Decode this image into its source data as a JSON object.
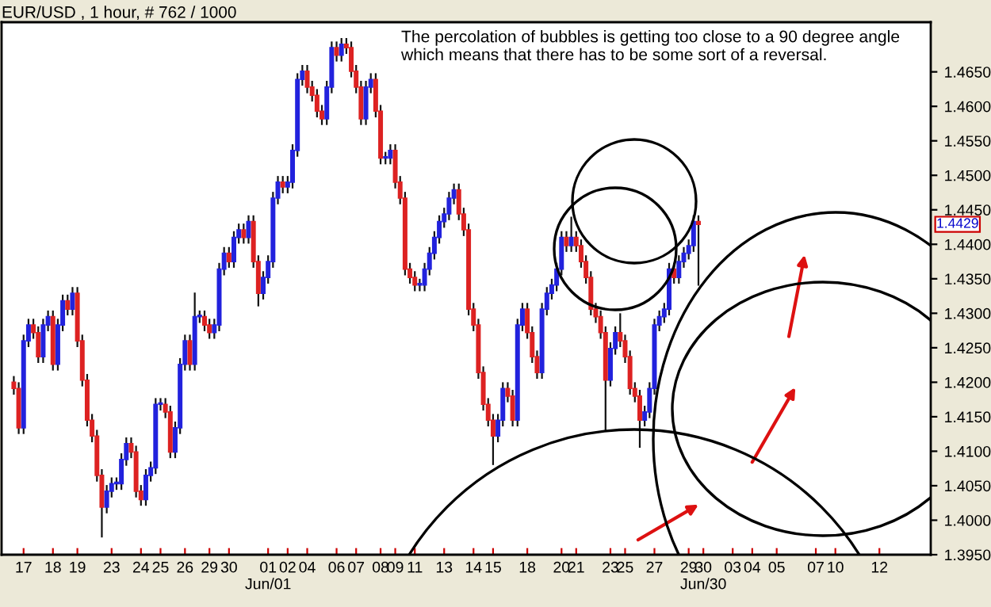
{
  "chart_data": {
    "type": "candlestick",
    "title": "EUR/USD , 1 hour, # 762 / 1000",
    "annotations": [
      "The percolation of bubbles is getting too close to a 90 degree angle which means that there has to be some sort of a reversal.",
      {
        "text": "1.4429",
        "y": 1.4429
      }
    ],
    "categories": [
      null,
      null,
      null,
      null,
      "17",
      null,
      null,
      null,
      null,
      null,
      "18",
      null,
      null,
      null,
      null,
      "19",
      null,
      null,
      null,
      null,
      null,
      null,
      "23",
      null,
      null,
      null,
      null,
      null,
      "24",
      null,
      null,
      null,
      "25",
      null,
      null,
      null,
      null,
      "26",
      null,
      null,
      null,
      null,
      "29",
      null,
      null,
      null,
      "30",
      null,
      null,
      null,
      null,
      null,
      null,
      null,
      "01\nJun/01",
      null,
      null,
      null,
      "02",
      null,
      null,
      null,
      "04",
      null,
      null,
      null,
      null,
      null,
      "06",
      null,
      null,
      null,
      "07",
      null,
      null,
      null,
      null,
      "08",
      null,
      null,
      "09",
      null,
      null,
      null,
      "11",
      null,
      null,
      null,
      null,
      null,
      "13",
      null,
      null,
      null,
      null,
      null,
      "14",
      null,
      null,
      null,
      "15",
      null,
      null,
      null,
      null,
      null,
      null,
      "18",
      null,
      null,
      null,
      null,
      null,
      null,
      "20",
      null,
      null,
      "21",
      null,
      null,
      null,
      null,
      null,
      null,
      "23",
      null,
      null,
      "25",
      null,
      null,
      null,
      null,
      null,
      "27",
      null,
      null,
      null,
      null,
      null,
      null,
      "29",
      null,
      null,
      "30\nJun/30",
      null,
      null,
      null,
      null,
      null,
      "03",
      null,
      null,
      null,
      "04",
      null,
      null,
      null,
      null,
      "05",
      null,
      null,
      null,
      null,
      null,
      null,
      null,
      "07",
      null,
      null,
      null,
      "10",
      null,
      null,
      null,
      null,
      null,
      null,
      null,
      null,
      "12",
      null,
      null,
      null,
      null,
      null,
      null,
      null,
      null,
      null,
      null
    ],
    "ohlc": [
      null,
      null,
      [
        1.42,
        1.4209,
        1.4182,
        1.4191
      ],
      [
        1.4191,
        1.42,
        1.4125,
        1.4134
      ],
      [
        1.4134,
        1.4269,
        1.4125,
        1.426
      ],
      [
        1.426,
        1.4292,
        1.4251,
        1.4283
      ],
      [
        1.4283,
        1.4292,
        1.4263,
        1.4272
      ],
      [
        1.4272,
        1.4281,
        1.4228,
        1.4237
      ],
      [
        1.4237,
        1.4292,
        1.4228,
        1.4283
      ],
      [
        1.4283,
        1.4304,
        1.4274,
        1.4295
      ],
      [
        1.4295,
        1.4304,
        1.4217,
        1.4226
      ],
      [
        1.4226,
        1.4292,
        1.4217,
        1.4283
      ],
      [
        1.4283,
        1.4327,
        1.4274,
        1.4318
      ],
      [
        1.4318,
        1.4327,
        1.4297,
        1.4306
      ],
      [
        1.4306,
        1.4338,
        1.4297,
        1.4329
      ],
      [
        1.4329,
        1.4338,
        1.4251,
        1.426
      ],
      [
        1.426,
        1.4269,
        1.4194,
        1.4203
      ],
      [
        1.4203,
        1.4212,
        1.4136,
        1.4145
      ],
      [
        1.4145,
        1.4154,
        1.4113,
        1.4122
      ],
      [
        1.4122,
        1.4131,
        1.4056,
        1.4065
      ],
      [
        1.4065,
        1.4074,
        1.3975,
        1.4019
      ],
      [
        1.4019,
        1.4051,
        1.401,
        1.4042
      ],
      [
        1.4042,
        1.4062,
        1.4033,
        1.4053
      ],
      [
        1.4053,
        1.4062,
        1.4044,
        1.4053
      ],
      [
        1.4053,
        1.4097,
        1.4044,
        1.4088
      ],
      [
        1.4088,
        1.412,
        1.4079,
        1.4111
      ],
      [
        1.4111,
        1.412,
        1.409,
        1.4099
      ],
      [
        1.4099,
        1.4108,
        1.4033,
        1.4042
      ],
      [
        1.4042,
        1.4051,
        1.4021,
        1.403
      ],
      [
        1.403,
        1.4074,
        1.4021,
        1.4065
      ],
      [
        1.4065,
        1.4085,
        1.4056,
        1.4076
      ],
      [
        1.4076,
        1.4177,
        1.4067,
        1.4168
      ],
      [
        1.4168,
        1.4177,
        1.4159,
        1.4168
      ],
      [
        1.4168,
        1.4177,
        1.4148,
        1.4157
      ],
      [
        1.4157,
        1.4166,
        1.409,
        1.4099
      ],
      [
        1.4099,
        1.4143,
        1.409,
        1.4134
      ],
      [
        1.4134,
        1.4235,
        1.4125,
        1.4226
      ],
      [
        1.4226,
        1.4269,
        1.4217,
        1.426
      ],
      [
        1.426,
        1.4269,
        1.4217,
        1.4226
      ],
      [
        1.4226,
        1.433,
        1.4217,
        1.4295
      ],
      [
        1.4295,
        1.4304,
        1.4286,
        1.4295
      ],
      [
        1.4295,
        1.4304,
        1.4274,
        1.4283
      ],
      [
        1.4283,
        1.4292,
        1.4263,
        1.4272
      ],
      [
        1.4272,
        1.4292,
        1.4263,
        1.4283
      ],
      [
        1.4283,
        1.4373,
        1.4274,
        1.4364
      ],
      [
        1.4364,
        1.4396,
        1.4355,
        1.4387
      ],
      [
        1.4387,
        1.4396,
        1.4366,
        1.4375
      ],
      [
        1.4375,
        1.4419,
        1.4366,
        1.441
      ],
      [
        1.441,
        1.443,
        1.4401,
        1.4421
      ],
      [
        1.4421,
        1.443,
        1.4401,
        1.441
      ],
      [
        1.441,
        1.4442,
        1.4401,
        1.4433
      ],
      [
        1.4433,
        1.4442,
        1.4366,
        1.4375
      ],
      [
        1.4375,
        1.4384,
        1.431,
        1.4329
      ],
      [
        1.4329,
        1.4361,
        1.432,
        1.4352
      ],
      [
        1.4352,
        1.4384,
        1.4343,
        1.4375
      ],
      [
        1.4375,
        1.4476,
        1.4366,
        1.4467
      ],
      [
        1.4467,
        1.4499,
        1.4458,
        1.449
      ],
      [
        1.449,
        1.4499,
        1.4474,
        1.4483
      ],
      [
        1.4483,
        1.4499,
        1.4474,
        1.449
      ],
      [
        1.449,
        1.4545,
        1.4481,
        1.4536
      ],
      [
        1.4536,
        1.4648,
        1.4527,
        1.4639
      ],
      [
        1.4639,
        1.466,
        1.463,
        1.4651
      ],
      [
        1.4651,
        1.466,
        1.4619,
        1.4628
      ],
      [
        1.4628,
        1.4637,
        1.4607,
        1.4616
      ],
      [
        1.4616,
        1.4625,
        1.4584,
        1.4593
      ],
      [
        1.4593,
        1.4602,
        1.4573,
        1.4582
      ],
      [
        1.4582,
        1.4637,
        1.4573,
        1.4628
      ],
      [
        1.4628,
        1.4694,
        1.4619,
        1.4685
      ],
      [
        1.4685,
        1.4694,
        1.4665,
        1.4674
      ],
      [
        1.4674,
        1.4699,
        1.4665,
        1.469
      ],
      [
        1.469,
        1.4699,
        1.4676,
        1.4685
      ],
      [
        1.4685,
        1.4694,
        1.4642,
        1.4651
      ],
      [
        1.4651,
        1.466,
        1.4619,
        1.4628
      ],
      [
        1.4628,
        1.4637,
        1.4573,
        1.4582
      ],
      [
        1.4582,
        1.4637,
        1.4573,
        1.4628
      ],
      [
        1.4628,
        1.4648,
        1.4619,
        1.4639
      ],
      [
        1.4639,
        1.4648,
        1.4584,
        1.4593
      ],
      [
        1.4593,
        1.4602,
        1.4516,
        1.4525
      ],
      [
        1.4525,
        1.4534,
        1.4516,
        1.4525
      ],
      [
        1.4525,
        1.4545,
        1.4516,
        1.4536
      ],
      [
        1.4536,
        1.4545,
        1.4481,
        1.449
      ],
      [
        1.449,
        1.4499,
        1.4458,
        1.4467
      ],
      [
        1.4467,
        1.4476,
        1.4355,
        1.4364
      ],
      [
        1.4364,
        1.4373,
        1.4343,
        1.4352
      ],
      [
        1.4352,
        1.4361,
        1.4332,
        1.4341
      ],
      [
        1.4341,
        1.435,
        1.4332,
        1.4341
      ],
      [
        1.4341,
        1.4373,
        1.4332,
        1.4364
      ],
      [
        1.4364,
        1.4396,
        1.4355,
        1.4387
      ],
      [
        1.4387,
        1.4419,
        1.4378,
        1.441
      ],
      [
        1.441,
        1.4442,
        1.4401,
        1.4433
      ],
      [
        1.4433,
        1.4453,
        1.4424,
        1.4444
      ],
      [
        1.4444,
        1.4476,
        1.4435,
        1.4467
      ],
      [
        1.4467,
        1.4488,
        1.4458,
        1.4479
      ],
      [
        1.4479,
        1.4488,
        1.4435,
        1.4444
      ],
      [
        1.4444,
        1.4453,
        1.4412,
        1.4421
      ],
      [
        1.4421,
        1.443,
        1.4297,
        1.4306
      ],
      [
        1.4306,
        1.4315,
        1.4274,
        1.4283
      ],
      [
        1.4283,
        1.4292,
        1.4205,
        1.4214
      ],
      [
        1.4214,
        1.4223,
        1.4159,
        1.4168
      ],
      [
        1.4168,
        1.4177,
        1.4136,
        1.4145
      ],
      [
        1.4145,
        1.4154,
        1.408,
        1.4122
      ],
      [
        1.4122,
        1.4154,
        1.4113,
        1.4145
      ],
      [
        1.4145,
        1.42,
        1.4136,
        1.4191
      ],
      [
        1.4191,
        1.42,
        1.4171,
        1.418
      ],
      [
        1.418,
        1.4189,
        1.4136,
        1.4145
      ],
      [
        1.4145,
        1.4292,
        1.4136,
        1.4283
      ],
      [
        1.4283,
        1.4315,
        1.4274,
        1.4306
      ],
      [
        1.4306,
        1.4315,
        1.4263,
        1.4272
      ],
      [
        1.4272,
        1.4281,
        1.4228,
        1.4237
      ],
      [
        1.4237,
        1.4246,
        1.4205,
        1.4214
      ],
      [
        1.4214,
        1.4315,
        1.4205,
        1.4306
      ],
      [
        1.4306,
        1.4338,
        1.4297,
        1.4329
      ],
      [
        1.4329,
        1.435,
        1.432,
        1.4341
      ],
      [
        1.4341,
        1.4373,
        1.4332,
        1.4364
      ],
      [
        1.4364,
        1.4419,
        1.4355,
        1.441
      ],
      [
        1.441,
        1.4419,
        1.4389,
        1.4398
      ],
      [
        1.4398,
        1.444,
        1.4389,
        1.441
      ],
      [
        1.441,
        1.4419,
        1.4389,
        1.4398
      ],
      [
        1.4398,
        1.4407,
        1.4366,
        1.4375
      ],
      [
        1.4375,
        1.4384,
        1.4343,
        1.4352
      ],
      [
        1.4352,
        1.4361,
        1.4297,
        1.4306
      ],
      [
        1.4306,
        1.4315,
        1.4286,
        1.4295
      ],
      [
        1.4295,
        1.4304,
        1.4263,
        1.4272
      ],
      [
        1.4272,
        1.4281,
        1.413,
        1.4203
      ],
      [
        1.4203,
        1.4258,
        1.4194,
        1.4249
      ],
      [
        1.4249,
        1.4281,
        1.424,
        1.4272
      ],
      [
        1.4272,
        1.43,
        1.4251,
        1.426
      ],
      [
        1.426,
        1.4269,
        1.4228,
        1.4237
      ],
      [
        1.4237,
        1.4246,
        1.4182,
        1.4191
      ],
      [
        1.4191,
        1.42,
        1.4171,
        1.418
      ],
      [
        1.418,
        1.4189,
        1.4105,
        1.4145
      ],
      [
        1.4145,
        1.4166,
        1.4136,
        1.4157
      ],
      [
        1.4157,
        1.42,
        1.4148,
        1.4191
      ],
      [
        1.4191,
        1.4292,
        1.4182,
        1.4283
      ],
      [
        1.4283,
        1.4304,
        1.4274,
        1.4295
      ],
      [
        1.4295,
        1.4315,
        1.4286,
        1.4306
      ],
      [
        1.4306,
        1.4373,
        1.4297,
        1.4364
      ],
      [
        1.4364,
        1.4373,
        1.4343,
        1.4352
      ],
      [
        1.4352,
        1.4384,
        1.4343,
        1.4375
      ],
      [
        1.4375,
        1.4396,
        1.4366,
        1.4387
      ],
      [
        1.4387,
        1.4407,
        1.4378,
        1.4398
      ],
      [
        1.4398,
        1.4442,
        1.4389,
        1.4433
      ],
      [
        1.4433,
        1.4442,
        1.434,
        1.4429
      ],
      null,
      null,
      null,
      null,
      null,
      null,
      null,
      null,
      null,
      null,
      null,
      null,
      null,
      null,
      null,
      null,
      null,
      null,
      null,
      null,
      null,
      null,
      null,
      null,
      null,
      null,
      null,
      null,
      null,
      null,
      null,
      null,
      null,
      null,
      null,
      null,
      null,
      null,
      null,
      null,
      null,
      null,
      null,
      null,
      null,
      null,
      null
    ],
    "ylim": [
      1.395,
      1.4722
    ],
    "yticks": [
      {
        "value": 1.395,
        "label": "1.3950"
      },
      {
        "value": 1.4,
        "label": "1.4000"
      },
      {
        "value": 1.405,
        "label": "1.4050"
      },
      {
        "value": 1.41,
        "label": "1.4100"
      },
      {
        "value": 1.415,
        "label": "1.4150"
      },
      {
        "value": 1.42,
        "label": "1.4200"
      },
      {
        "value": 1.425,
        "label": "1.4250"
      },
      {
        "value": 1.43,
        "label": "1.4300"
      },
      {
        "value": 1.435,
        "label": "1.4350"
      },
      {
        "value": 1.44,
        "label": "1.4400"
      },
      {
        "value": 1.445,
        "label": "1.4450"
      },
      {
        "value": 1.45,
        "label": "1.4500"
      },
      {
        "value": 1.455,
        "label": "1.4550"
      },
      {
        "value": 1.46,
        "label": "1.4600"
      },
      {
        "value": 1.465,
        "label": "1.4650"
      }
    ],
    "grid": false
  }
}
